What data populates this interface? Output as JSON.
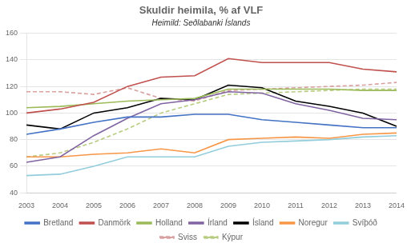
{
  "chart_data": {
    "type": "line",
    "title": "Skuldir heimila, % af VLF",
    "subtitle": "Heimild: Seðlabanki Íslands",
    "categories": [
      "2003",
      "2004",
      "2005",
      "2006",
      "2007",
      "2008",
      "2009",
      "2010",
      "2011",
      "2012",
      "2013",
      "2014"
    ],
    "series": [
      {
        "name": "Bretland",
        "color": "#4472C4",
        "line_style": "solid",
        "values": [
          84,
          88,
          93,
          97,
          97,
          99,
          99,
          95,
          93,
          91,
          89,
          89
        ]
      },
      {
        "name": "Danmörk",
        "color": "#C0504D",
        "line_style": "solid",
        "values": [
          100,
          103,
          108,
          120,
          127,
          128,
          141,
          138,
          138,
          138,
          133,
          131
        ]
      },
      {
        "name": "Holland",
        "color": "#9BBB59",
        "line_style": "solid",
        "values": [
          104,
          105,
          107,
          109,
          110,
          111,
          118,
          118,
          118,
          118,
          117,
          117
        ]
      },
      {
        "name": "Írland",
        "color": "#8064A2",
        "line_style": "solid",
        "values": [
          63,
          67,
          83,
          96,
          107,
          110,
          116,
          115,
          107,
          102,
          96,
          95
        ]
      },
      {
        "name": "Ísland",
        "color": "#000000",
        "line_style": "solid",
        "values": [
          91,
          88,
          100,
          104,
          111,
          110,
          121,
          119,
          109,
          105,
          100,
          90
        ]
      },
      {
        "name": "Noregur",
        "color": "#F79646",
        "line_style": "solid",
        "values": [
          67,
          67,
          69,
          70,
          73,
          70,
          80,
          81,
          82,
          81,
          84,
          85
        ]
      },
      {
        "name": "Svíþóð",
        "color": "#92CDDC",
        "line_style": "solid",
        "values": [
          53,
          54,
          60,
          67,
          67,
          67,
          75,
          78,
          79,
          80,
          82,
          83
        ]
      },
      {
        "name": "Sviss",
        "color": "#D9A0A0",
        "line_style": "dashed",
        "values": [
          116,
          116,
          114,
          119,
          111,
          109,
          117,
          118,
          119,
          120,
          121,
          123
        ]
      },
      {
        "name": "Kýpur",
        "color": "#B8CC80",
        "line_style": "dashed",
        "values": [
          67,
          70,
          78,
          88,
          100,
          107,
          114,
          115,
          116,
          117,
          118,
          118
        ]
      }
    ],
    "ylim": [
      40,
      160
    ],
    "yticks": [
      40,
      60,
      80,
      100,
      120,
      140,
      160
    ],
    "grid": true,
    "legend": "bottom"
  }
}
